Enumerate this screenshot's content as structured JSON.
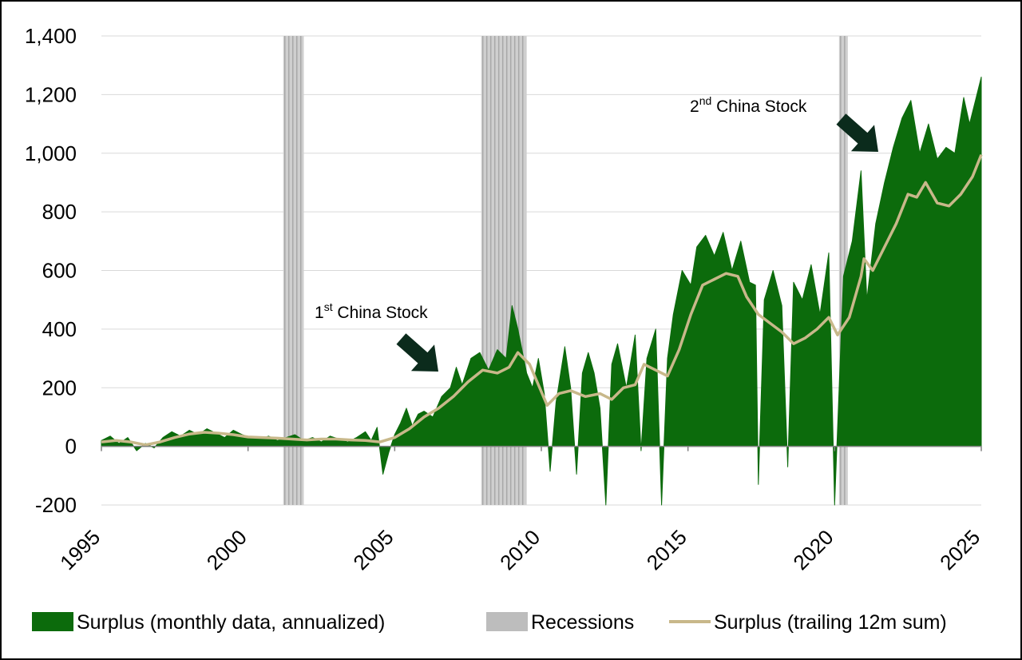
{
  "chart_data": {
    "type": "area",
    "xlim": [
      1995,
      2025
    ],
    "ylim": [
      -200,
      1400
    ],
    "yticks": [
      "-200",
      "0",
      "200",
      "400",
      "600",
      "800",
      "1,000",
      "1,200",
      "1,400"
    ],
    "ytick_values": [
      -200,
      0,
      200,
      400,
      600,
      800,
      1000,
      1200,
      1400
    ],
    "xticks": [
      "1995",
      "2000",
      "2005",
      "2010",
      "2015",
      "2020",
      "2025"
    ],
    "xtick_values": [
      1995,
      2000,
      2005,
      2010,
      2015,
      2020,
      2025
    ],
    "grid": "horizontal",
    "legend_position": "bottom",
    "recessions": [
      [
        2001.2,
        2001.9
      ],
      [
        2007.95,
        2009.5
      ],
      [
        2020.15,
        2020.45
      ]
    ],
    "series": [
      {
        "name": "Surplus (monthly data, annualized)",
        "kind": "area",
        "color": "#0c6b0c",
        "points": [
          [
            1995.0,
            20
          ],
          [
            1995.3,
            35
          ],
          [
            1995.6,
            10
          ],
          [
            1995.9,
            30
          ],
          [
            1996.2,
            -15
          ],
          [
            1996.5,
            10
          ],
          [
            1996.8,
            -5
          ],
          [
            1997.1,
            30
          ],
          [
            1997.4,
            50
          ],
          [
            1997.7,
            35
          ],
          [
            1998.0,
            55
          ],
          [
            1998.3,
            40
          ],
          [
            1998.6,
            60
          ],
          [
            1998.9,
            45
          ],
          [
            1999.2,
            30
          ],
          [
            1999.5,
            55
          ],
          [
            1999.8,
            40
          ],
          [
            2000.1,
            30
          ],
          [
            2000.4,
            25
          ],
          [
            2000.7,
            35
          ],
          [
            2001.0,
            20
          ],
          [
            2001.3,
            30
          ],
          [
            2001.6,
            40
          ],
          [
            2001.9,
            20
          ],
          [
            2002.2,
            30
          ],
          [
            2002.5,
            15
          ],
          [
            2002.8,
            35
          ],
          [
            2003.1,
            25
          ],
          [
            2003.4,
            15
          ],
          [
            2003.7,
            30
          ],
          [
            2004.0,
            50
          ],
          [
            2004.2,
            20
          ],
          [
            2004.4,
            65
          ],
          [
            2004.6,
            -95
          ],
          [
            2004.8,
            -20
          ],
          [
            2005.0,
            40
          ],
          [
            2005.2,
            80
          ],
          [
            2005.4,
            130
          ],
          [
            2005.6,
            70
          ],
          [
            2005.8,
            110
          ],
          [
            2006.0,
            120
          ],
          [
            2006.3,
            100
          ],
          [
            2006.6,
            170
          ],
          [
            2006.9,
            200
          ],
          [
            2007.1,
            270
          ],
          [
            2007.3,
            210
          ],
          [
            2007.6,
            300
          ],
          [
            2007.9,
            320
          ],
          [
            2008.2,
            260
          ],
          [
            2008.5,
            330
          ],
          [
            2008.8,
            300
          ],
          [
            2009.0,
            480
          ],
          [
            2009.2,
            400
          ],
          [
            2009.5,
            250
          ],
          [
            2009.7,
            200
          ],
          [
            2009.9,
            300
          ],
          [
            2010.1,
            180
          ],
          [
            2010.3,
            -85
          ],
          [
            2010.5,
            150
          ],
          [
            2010.8,
            340
          ],
          [
            2011.0,
            200
          ],
          [
            2011.2,
            -95
          ],
          [
            2011.4,
            250
          ],
          [
            2011.6,
            320
          ],
          [
            2011.8,
            250
          ],
          [
            2012.0,
            130
          ],
          [
            2012.2,
            -200
          ],
          [
            2012.4,
            280
          ],
          [
            2012.6,
            350
          ],
          [
            2012.9,
            200
          ],
          [
            2013.2,
            380
          ],
          [
            2013.4,
            -15
          ],
          [
            2013.6,
            300
          ],
          [
            2013.9,
            400
          ],
          [
            2014.1,
            -200
          ],
          [
            2014.3,
            300
          ],
          [
            2014.5,
            450
          ],
          [
            2014.8,
            600
          ],
          [
            2015.1,
            550
          ],
          [
            2015.3,
            680
          ],
          [
            2015.6,
            720
          ],
          [
            2015.9,
            650
          ],
          [
            2016.2,
            730
          ],
          [
            2016.5,
            600
          ],
          [
            2016.8,
            700
          ],
          [
            2017.1,
            560
          ],
          [
            2017.3,
            550
          ],
          [
            2017.4,
            -130
          ],
          [
            2017.6,
            500
          ],
          [
            2017.9,
            600
          ],
          [
            2018.2,
            480
          ],
          [
            2018.4,
            -70
          ],
          [
            2018.6,
            560
          ],
          [
            2018.9,
            500
          ],
          [
            2019.2,
            620
          ],
          [
            2019.5,
            450
          ],
          [
            2019.8,
            660
          ],
          [
            2020.0,
            -200
          ],
          [
            2020.3,
            580
          ],
          [
            2020.6,
            700
          ],
          [
            2020.9,
            940
          ],
          [
            2021.1,
            500
          ],
          [
            2021.4,
            760
          ],
          [
            2021.7,
            900
          ],
          [
            2022.0,
            1020
          ],
          [
            2022.3,
            1120
          ],
          [
            2022.6,
            1180
          ],
          [
            2022.9,
            1000
          ],
          [
            2023.2,
            1100
          ],
          [
            2023.5,
            980
          ],
          [
            2023.8,
            1020
          ],
          [
            2024.1,
            1000
          ],
          [
            2024.4,
            1190
          ],
          [
            2024.6,
            1100
          ],
          [
            2024.8,
            1180
          ],
          [
            2025.0,
            1260
          ]
        ]
      },
      {
        "name": "Recessions",
        "kind": "band",
        "color": "#bdbdbd"
      },
      {
        "name": "Surplus (trailing 12m sum)",
        "kind": "line",
        "color": "#c8b88a",
        "points": [
          [
            1995.0,
            15
          ],
          [
            1995.5,
            20
          ],
          [
            1996.0,
            15
          ],
          [
            1996.5,
            5
          ],
          [
            1997.0,
            15
          ],
          [
            1997.5,
            30
          ],
          [
            1998.0,
            42
          ],
          [
            1998.5,
            48
          ],
          [
            1999.0,
            45
          ],
          [
            1999.5,
            40
          ],
          [
            2000.0,
            32
          ],
          [
            2000.5,
            30
          ],
          [
            2001.0,
            28
          ],
          [
            2001.5,
            25
          ],
          [
            2002.0,
            22
          ],
          [
            2002.5,
            25
          ],
          [
            2003.0,
            25
          ],
          [
            2003.5,
            22
          ],
          [
            2004.0,
            20
          ],
          [
            2004.5,
            15
          ],
          [
            2005.0,
            30
          ],
          [
            2005.5,
            60
          ],
          [
            2006.0,
            100
          ],
          [
            2006.5,
            130
          ],
          [
            2007.0,
            170
          ],
          [
            2007.5,
            220
          ],
          [
            2008.0,
            260
          ],
          [
            2008.5,
            250
          ],
          [
            2008.9,
            270
          ],
          [
            2009.2,
            320
          ],
          [
            2009.6,
            280
          ],
          [
            2009.9,
            210
          ],
          [
            2010.2,
            140
          ],
          [
            2010.6,
            180
          ],
          [
            2011.0,
            190
          ],
          [
            2011.5,
            170
          ],
          [
            2012.0,
            180
          ],
          [
            2012.4,
            160
          ],
          [
            2012.8,
            200
          ],
          [
            2013.2,
            210
          ],
          [
            2013.5,
            280
          ],
          [
            2013.9,
            260
          ],
          [
            2014.3,
            240
          ],
          [
            2014.7,
            330
          ],
          [
            2015.1,
            450
          ],
          [
            2015.5,
            550
          ],
          [
            2015.9,
            570
          ],
          [
            2016.3,
            590
          ],
          [
            2016.7,
            580
          ],
          [
            2017.0,
            510
          ],
          [
            2017.4,
            450
          ],
          [
            2017.8,
            420
          ],
          [
            2018.2,
            390
          ],
          [
            2018.6,
            350
          ],
          [
            2019.0,
            370
          ],
          [
            2019.4,
            400
          ],
          [
            2019.8,
            440
          ],
          [
            2020.1,
            380
          ],
          [
            2020.5,
            440
          ],
          [
            2020.9,
            580
          ],
          [
            2021.0,
            640
          ],
          [
            2021.3,
            600
          ],
          [
            2021.7,
            680
          ],
          [
            2022.1,
            760
          ],
          [
            2022.5,
            860
          ],
          [
            2022.8,
            850
          ],
          [
            2023.1,
            900
          ],
          [
            2023.5,
            830
          ],
          [
            2023.9,
            820
          ],
          [
            2024.3,
            860
          ],
          [
            2024.7,
            920
          ],
          [
            2025.0,
            995
          ]
        ]
      }
    ],
    "annotations": [
      {
        "text": "1st China Stock",
        "base": "1",
        "sup": "st",
        "rest": " China Stock",
        "x": 2007.0,
        "y": 275
      },
      {
        "text": "2nd China Stock",
        "base": "2",
        "sup": "nd",
        "rest": " China Stock",
        "x": 2021.8,
        "y": 1000
      }
    ]
  }
}
